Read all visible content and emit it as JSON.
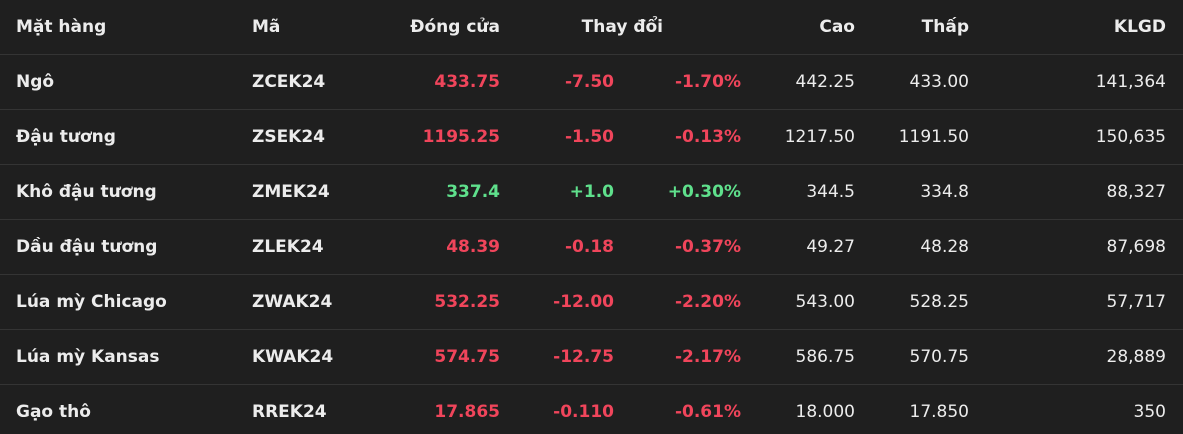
{
  "table": {
    "header": [
      "Mặt hàng",
      "Mã",
      "Đóng cửa",
      "Thay đổi",
      "Cao",
      "Thấp",
      "KLGD"
    ],
    "rows": [
      {
        "name": "Ngô",
        "code": "ZCEK24",
        "close": "433.75",
        "change": "-7.50",
        "change_pct": "-1.70%",
        "high": "442.25",
        "low": "433.00",
        "volume": "141,364"
      },
      {
        "name": "Đậu tương",
        "code": "ZSEK24",
        "close": "1195.25",
        "change": "-1.50",
        "change_pct": "-0.13%",
        "high": "1217.50",
        "low": "1191.50",
        "volume": "150,635"
      },
      {
        "name": "Khô đậu tương",
        "code": "ZMEK24",
        "close": "337.4",
        "change": "+1.0",
        "change_pct": "+0.30%",
        "high": "344.5",
        "low": "334.8",
        "volume": "88,327"
      },
      {
        "name": "Dầu đậu tương",
        "code": "ZLEK24",
        "close": "48.39",
        "change": "-0.18",
        "change_pct": "-0.37%",
        "high": "49.27",
        "low": "48.28",
        "volume": "87,698"
      },
      {
        "name": "Lúa mỳ Chicago",
        "code": "ZWAK24",
        "close": "532.25",
        "change": "-12.00",
        "change_pct": "-2.20%",
        "high": "543.00",
        "low": "528.25",
        "volume": "57,717"
      },
      {
        "name": "Lúa mỳ Kansas",
        "code": "KWAK24",
        "close": "574.75",
        "change": "-12.75",
        "change_pct": "-2.17%",
        "high": "586.75",
        "low": "570.75",
        "volume": "28,889"
      },
      {
        "name": "Gạo thô",
        "code": "RREK24",
        "close": "17.865",
        "change": "-0.110",
        "change_pct": "-0.61%",
        "high": "18.000",
        "low": "17.850",
        "volume": "350"
      }
    ]
  }
}
